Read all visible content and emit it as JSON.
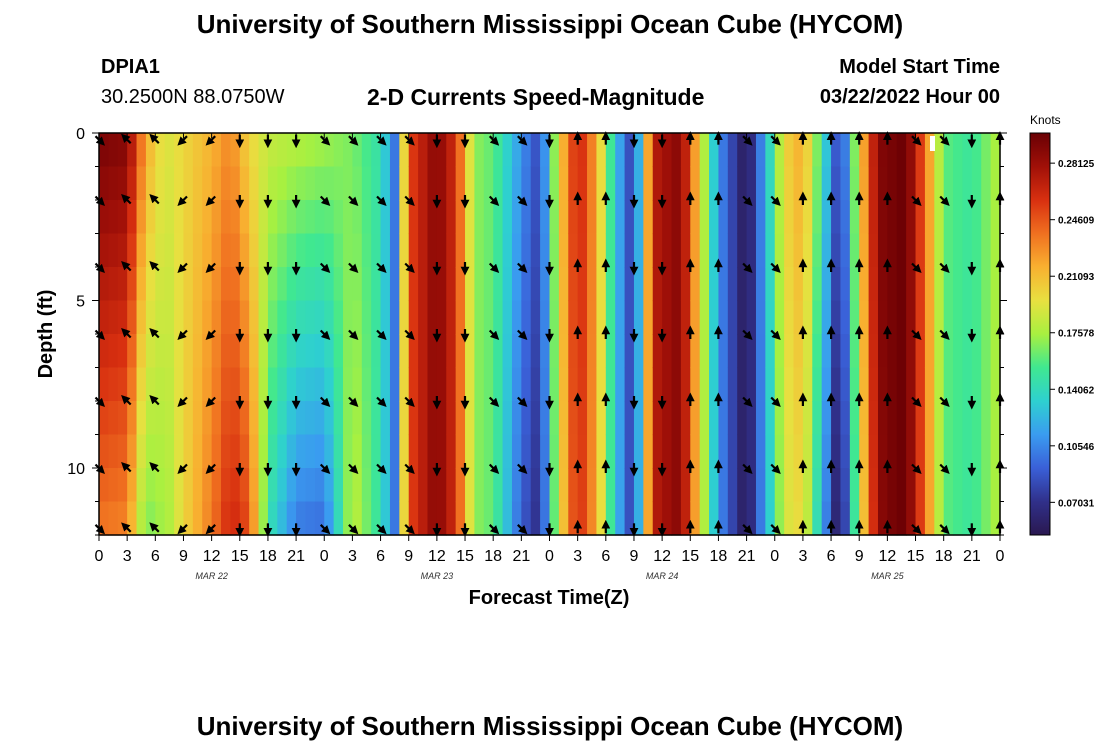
{
  "header": {
    "title": "University of Southern Mississippi Ocean Cube (HYCOM)",
    "station_id": "DPIA1",
    "station_coords": "30.2500N  88.0750W",
    "plot_title": "2-D Currents Speed-Magnitude",
    "model_start_label": "Model Start Time",
    "model_start_value": "03/22/2022 Hour 00"
  },
  "footer": {
    "title": "University of Southern Mississippi Ocean Cube (HYCOM)"
  },
  "colors": {
    "colormap": [
      "#2a1850",
      "#30308a",
      "#3a60d8",
      "#3a9cf0",
      "#2ed0d0",
      "#40e890",
      "#a8f040",
      "#e8e040",
      "#f8b030",
      "#f07020",
      "#d83010",
      "#a01008",
      "#6a0004"
    ]
  },
  "chart_data": {
    "type": "heatmap",
    "title": "2-D Currents Speed-Magnitude",
    "xlabel": "Forecast Time(Z)",
    "ylabel": "Depth (ft)",
    "x_range_hours": [
      0,
      96
    ],
    "y_range_ft": [
      0,
      12
    ],
    "x_tick_labels": [
      "0",
      "3",
      "6",
      "9",
      "12",
      "15",
      "18",
      "21",
      "0",
      "3",
      "6",
      "9",
      "12",
      "15",
      "18",
      "21",
      "0",
      "3",
      "6",
      "9",
      "12",
      "15",
      "18",
      "21",
      "0",
      "3",
      "6",
      "9",
      "12",
      "15",
      "18",
      "21",
      "0"
    ],
    "y_ticks": [
      {
        "value": 0,
        "label": "0"
      },
      {
        "value": 5,
        "label": "5"
      },
      {
        "value": 10,
        "label": "10"
      }
    ],
    "date_labels": [
      {
        "hour": 12,
        "label": "MAR 22"
      },
      {
        "hour": 36,
        "label": "MAR 23"
      },
      {
        "hour": 60,
        "label": "MAR 24"
      },
      {
        "hour": 84,
        "label": "MAR 25"
      }
    ],
    "colorbar": {
      "unit": "Knots",
      "range": [
        0.05,
        0.3
      ],
      "tick_labels": [
        {
          "value": 0.28125,
          "label": "0.28125"
        },
        {
          "value": 0.24609,
          "label": "0.24609"
        },
        {
          "value": 0.21093,
          "label": "0.21093"
        },
        {
          "value": 0.17578,
          "label": "0.17578"
        },
        {
          "value": 0.14062,
          "label": "0.14062"
        },
        {
          "value": 0.10546,
          "label": "0.10546"
        },
        {
          "value": 0.07031,
          "label": "0.07031"
        }
      ]
    },
    "depths_ft": [
      0,
      1,
      2,
      3,
      4,
      5,
      6,
      7,
      8,
      9,
      10,
      11,
      12
    ],
    "surface_speed_by_hour": [
      {
        "h": 0,
        "v": 0.295
      },
      {
        "h": 3,
        "v": 0.29
      },
      {
        "h": 5,
        "v": 0.22
      },
      {
        "h": 7,
        "v": 0.19
      },
      {
        "h": 9,
        "v": 0.2
      },
      {
        "h": 12,
        "v": 0.215
      },
      {
        "h": 14,
        "v": 0.23
      },
      {
        "h": 16,
        "v": 0.2
      },
      {
        "h": 18,
        "v": 0.185
      },
      {
        "h": 21,
        "v": 0.18
      },
      {
        "h": 24,
        "v": 0.175
      },
      {
        "h": 27,
        "v": 0.165
      },
      {
        "h": 30,
        "v": 0.145
      },
      {
        "h": 31.5,
        "v": 0.1
      },
      {
        "h": 33,
        "v": 0.25
      },
      {
        "h": 36,
        "v": 0.29
      },
      {
        "h": 38,
        "v": 0.26
      },
      {
        "h": 40,
        "v": 0.17
      },
      {
        "h": 42,
        "v": 0.16
      },
      {
        "h": 45,
        "v": 0.11
      },
      {
        "h": 47,
        "v": 0.08
      },
      {
        "h": 49,
        "v": 0.2
      },
      {
        "h": 51,
        "v": 0.27
      },
      {
        "h": 53,
        "v": 0.22
      },
      {
        "h": 55,
        "v": 0.13
      },
      {
        "h": 57,
        "v": 0.07
      },
      {
        "h": 59,
        "v": 0.27
      },
      {
        "h": 62,
        "v": 0.29
      },
      {
        "h": 64,
        "v": 0.2
      },
      {
        "h": 66,
        "v": 0.11
      },
      {
        "h": 69,
        "v": 0.05
      },
      {
        "h": 71,
        "v": 0.12
      },
      {
        "h": 73,
        "v": 0.2
      },
      {
        "h": 75,
        "v": 0.22
      },
      {
        "h": 77,
        "v": 0.15
      },
      {
        "h": 79,
        "v": 0.07
      },
      {
        "h": 81,
        "v": 0.2
      },
      {
        "h": 83,
        "v": 0.29
      },
      {
        "h": 86,
        "v": 0.3
      },
      {
        "h": 88,
        "v": 0.24
      },
      {
        "h": 90,
        "v": 0.16
      },
      {
        "h": 93,
        "v": 0.15
      },
      {
        "h": 96,
        "v": 0.18
      }
    ],
    "deep_adjustment_by_hour": [
      {
        "h": 0,
        "d": -0.06
      },
      {
        "h": 5,
        "d": -0.06
      },
      {
        "h": 6,
        "d": -0.03
      },
      {
        "h": 9,
        "d": 0.0
      },
      {
        "h": 12,
        "d": 0.02
      },
      {
        "h": 16,
        "d": 0.05
      },
      {
        "h": 18,
        "d": -0.04
      },
      {
        "h": 21,
        "d": -0.08
      },
      {
        "h": 24,
        "d": -0.08
      },
      {
        "h": 27,
        "d": 0.02
      },
      {
        "h": 30,
        "d": 0.0
      },
      {
        "h": 36,
        "d": 0.0
      },
      {
        "h": 42,
        "d": 0.0
      },
      {
        "h": 45,
        "d": -0.02
      },
      {
        "h": 48,
        "d": -0.01
      },
      {
        "h": 54,
        "d": 0.0
      },
      {
        "h": 60,
        "d": 0.0
      },
      {
        "h": 70,
        "d": 0.0
      },
      {
        "h": 75,
        "d": -0.02
      },
      {
        "h": 78,
        "d": -0.03
      },
      {
        "h": 84,
        "d": 0.0
      },
      {
        "h": 96,
        "d": 0.0
      }
    ],
    "vectors": {
      "hours": [
        0,
        3,
        6,
        9,
        12,
        15,
        18,
        21,
        24,
        27,
        30,
        33,
        36,
        39,
        42,
        45,
        48,
        51,
        54,
        57,
        60,
        63,
        66,
        69,
        72,
        75,
        78,
        81,
        84,
        87,
        90,
        93,
        96
      ],
      "depth_rows_ft": [
        0.2,
        2.0,
        4.0,
        6.0,
        8.0,
        10.0,
        11.8
      ],
      "direction_deg_by_hour": [
        135,
        315,
        315,
        225,
        225,
        180,
        180,
        180,
        135,
        135,
        135,
        135,
        180,
        180,
        135,
        135,
        180,
        0,
        0,
        180,
        180,
        0,
        0,
        135,
        135,
        0,
        0,
        0,
        0,
        135,
        135,
        180,
        0
      ]
    }
  }
}
